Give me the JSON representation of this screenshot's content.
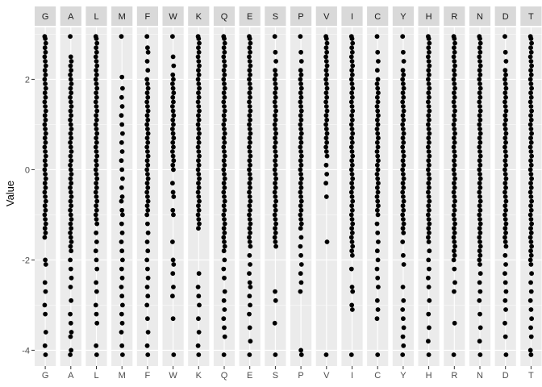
{
  "chart_data": {
    "type": "scatter",
    "facets": [
      "G",
      "A",
      "L",
      "M",
      "F",
      "W",
      "K",
      "Q",
      "E",
      "S",
      "P",
      "V",
      "I",
      "C",
      "Y",
      "H",
      "R",
      "N",
      "D",
      "T"
    ],
    "ylabel": "Value",
    "xlabel": "",
    "ylim": [
      -4.35,
      3.15
    ],
    "y_ticks": [
      -4,
      -2,
      0,
      2
    ],
    "y_tick_labels": [
      "-4",
      "-2",
      "0",
      "2"
    ],
    "grid": true,
    "legend": "none",
    "point_color": "#000000",
    "panel_background": "#ebebeb",
    "strip_background": "#d9d9d9",
    "series": [
      {
        "category": "G",
        "values": [
          2.95,
          2.9,
          2.8,
          2.7,
          2.6,
          2.5,
          2.4,
          2.3,
          2.2,
          2.1,
          2.0,
          1.9,
          1.8,
          1.7,
          1.6,
          1.5,
          1.4,
          1.3,
          1.2,
          1.1,
          1.0,
          0.9,
          0.8,
          0.7,
          0.6,
          0.5,
          0.4,
          0.3,
          0.2,
          0.1,
          0.0,
          -0.1,
          -0.2,
          -0.3,
          -0.4,
          -0.5,
          -0.6,
          -0.7,
          -0.8,
          -0.9,
          -1.0,
          -1.1,
          -1.2,
          -1.3,
          -1.4,
          -1.5,
          -2.0,
          -2.1,
          -2.5,
          -2.7,
          -3.0,
          -3.2,
          -3.6,
          -3.9,
          -4.1
        ]
      },
      {
        "category": "A",
        "values": [
          2.95,
          2.5,
          2.4,
          2.3,
          2.2,
          2.1,
          2.0,
          1.9,
          1.8,
          1.7,
          1.6,
          1.5,
          1.4,
          1.3,
          1.2,
          1.1,
          1.0,
          0.9,
          0.8,
          0.7,
          0.6,
          0.5,
          0.4,
          0.3,
          0.2,
          0.1,
          0.0,
          -0.1,
          -0.2,
          -0.3,
          -0.4,
          -0.5,
          -0.6,
          -0.7,
          -0.8,
          -0.9,
          -1.0,
          -1.1,
          -1.2,
          -1.3,
          -1.4,
          -1.5,
          -1.6,
          -1.7,
          -1.8,
          -2.0,
          -2.2,
          -2.4,
          -2.6,
          -2.9,
          -3.2,
          -3.4,
          -3.6,
          -3.7,
          -4.0,
          -4.1
        ]
      },
      {
        "category": "L",
        "values": [
          2.95,
          2.9,
          2.8,
          2.7,
          2.6,
          2.5,
          2.4,
          2.3,
          2.2,
          2.1,
          2.0,
          1.9,
          1.8,
          1.7,
          1.6,
          1.5,
          1.4,
          1.3,
          1.2,
          1.1,
          1.0,
          0.9,
          0.8,
          0.7,
          0.6,
          0.5,
          0.4,
          0.3,
          0.2,
          0.1,
          0.0,
          -0.1,
          -0.2,
          -0.3,
          -0.4,
          -0.5,
          -0.6,
          -0.7,
          -0.8,
          -0.9,
          -1.0,
          -1.1,
          -1.2,
          -1.4,
          -1.6,
          -1.8,
          -2.0,
          -2.2,
          -2.5,
          -2.7,
          -3.0,
          -3.2,
          -3.4,
          -3.9,
          -4.1
        ]
      },
      {
        "category": "M",
        "values": [
          2.95,
          2.05,
          1.8,
          1.6,
          1.4,
          1.2,
          1.0,
          0.8,
          0.6,
          0.4,
          0.2,
          0.0,
          -0.2,
          -0.4,
          -0.6,
          -0.7,
          -0.9,
          -1.0,
          -1.2,
          -1.4,
          -1.6,
          -1.8,
          -2.0,
          -2.2,
          -2.4,
          -2.6,
          -2.8,
          -3.0,
          -3.2,
          -3.4,
          -3.6,
          -3.9,
          -4.1
        ]
      },
      {
        "category": "F",
        "values": [
          2.95,
          2.7,
          2.6,
          2.4,
          2.2,
          2.0,
          1.9,
          1.8,
          1.7,
          1.6,
          1.5,
          1.4,
          1.3,
          1.2,
          1.1,
          1.0,
          0.9,
          0.8,
          0.7,
          0.6,
          0.5,
          0.4,
          0.3,
          0.2,
          0.1,
          0.0,
          -0.1,
          -0.2,
          -0.3,
          -0.4,
          -0.5,
          -0.6,
          -0.7,
          -0.8,
          -0.9,
          -1.0,
          -1.2,
          -1.4,
          -1.6,
          -1.8,
          -2.0,
          -2.2,
          -2.4,
          -2.6,
          -2.8,
          -3.0,
          -3.3,
          -3.6,
          -3.9,
          -4.1
        ]
      },
      {
        "category": "W",
        "values": [
          2.95,
          2.5,
          2.3,
          2.1,
          2.0,
          1.9,
          1.8,
          1.7,
          1.6,
          1.5,
          1.4,
          1.3,
          1.2,
          1.1,
          1.0,
          0.9,
          0.8,
          0.7,
          0.6,
          0.5,
          0.4,
          0.3,
          0.2,
          0.1,
          0.0,
          -0.3,
          -0.5,
          -0.6,
          -0.9,
          -1.0,
          -1.6,
          -2.0,
          -2.1,
          -2.3,
          -2.6,
          -2.8,
          -3.3,
          -4.1
        ]
      },
      {
        "category": "K",
        "values": [
          2.95,
          2.9,
          2.8,
          2.7,
          2.6,
          2.5,
          2.4,
          2.3,
          2.2,
          2.1,
          2.0,
          1.9,
          1.8,
          1.7,
          1.6,
          1.5,
          1.4,
          1.3,
          1.2,
          1.1,
          1.0,
          0.9,
          0.8,
          0.7,
          0.6,
          0.5,
          0.4,
          0.3,
          0.2,
          0.1,
          0.0,
          -0.1,
          -0.2,
          -0.3,
          -0.4,
          -0.5,
          -0.6,
          -0.7,
          -0.8,
          -0.9,
          -1.0,
          -1.1,
          -1.2,
          -1.3,
          -2.3,
          -2.6,
          -2.8,
          -3.0,
          -3.3,
          -3.6,
          -3.9,
          -4.1
        ]
      },
      {
        "category": "Q",
        "values": [
          2.95,
          2.9,
          2.8,
          2.7,
          2.6,
          2.5,
          2.4,
          2.3,
          2.2,
          2.1,
          2.0,
          1.9,
          1.8,
          1.7,
          1.6,
          1.5,
          1.4,
          1.3,
          1.2,
          1.1,
          1.0,
          0.9,
          0.8,
          0.7,
          0.6,
          0.5,
          0.4,
          0.3,
          0.2,
          0.1,
          0.0,
          -0.1,
          -0.2,
          -0.3,
          -0.4,
          -0.5,
          -0.6,
          -0.7,
          -0.8,
          -0.9,
          -1.0,
          -1.1,
          -1.2,
          -1.3,
          -1.4,
          -1.5,
          -1.6,
          -1.7,
          -1.8,
          -2.0,
          -2.2,
          -2.4,
          -2.7,
          -2.9,
          -3.1,
          -3.3,
          -3.5,
          -3.7,
          -4.1
        ]
      },
      {
        "category": "E",
        "values": [
          2.95,
          2.9,
          2.8,
          2.7,
          2.6,
          2.5,
          2.4,
          2.3,
          2.2,
          2.1,
          2.0,
          1.9,
          1.8,
          1.7,
          1.6,
          1.5,
          1.4,
          1.3,
          1.2,
          1.1,
          1.0,
          0.9,
          0.8,
          0.7,
          0.6,
          0.5,
          0.4,
          0.3,
          0.2,
          0.1,
          0.0,
          -0.1,
          -0.2,
          -0.3,
          -0.4,
          -0.5,
          -0.6,
          -0.7,
          -0.8,
          -0.9,
          -1.0,
          -1.1,
          -1.2,
          -1.3,
          -1.4,
          -1.5,
          -1.6,
          -1.7,
          -1.9,
          -2.1,
          -2.3,
          -2.5,
          -2.6,
          -2.8,
          -3.0,
          -3.2,
          -3.5,
          -3.8,
          -4.1
        ]
      },
      {
        "category": "S",
        "values": [
          2.95,
          2.6,
          2.4,
          2.2,
          2.1,
          2.0,
          1.9,
          1.8,
          1.7,
          1.6,
          1.5,
          1.4,
          1.3,
          1.2,
          1.1,
          1.0,
          0.9,
          0.8,
          0.7,
          0.6,
          0.5,
          0.4,
          0.3,
          0.2,
          0.1,
          0.0,
          -0.1,
          -0.2,
          -0.3,
          -0.4,
          -0.5,
          -0.6,
          -0.7,
          -0.8,
          -0.9,
          -1.0,
          -1.1,
          -1.2,
          -1.3,
          -1.4,
          -1.5,
          -1.6,
          -1.7,
          -2.7,
          -2.9,
          -3.4,
          -4.1
        ]
      },
      {
        "category": "P",
        "values": [
          2.95,
          2.6,
          2.4,
          2.2,
          2.1,
          2.0,
          1.9,
          1.8,
          1.7,
          1.6,
          1.5,
          1.4,
          1.3,
          1.2,
          1.1,
          1.0,
          0.9,
          0.8,
          0.7,
          0.6,
          0.5,
          0.4,
          0.3,
          0.2,
          0.1,
          0.0,
          -0.1,
          -0.2,
          -0.3,
          -0.4,
          -0.5,
          -0.6,
          -0.7,
          -0.8,
          -0.9,
          -1.0,
          -1.1,
          -1.2,
          -1.3,
          -1.5,
          -1.7,
          -1.9,
          -2.1,
          -2.3,
          -2.5,
          -2.7,
          -4.0,
          -4.1
        ]
      },
      {
        "category": "V",
        "values": [
          2.95,
          2.9,
          2.8,
          2.7,
          2.6,
          2.5,
          2.4,
          2.3,
          2.2,
          2.1,
          2.0,
          1.9,
          1.8,
          1.7,
          1.6,
          1.5,
          1.4,
          1.3,
          1.2,
          1.1,
          1.0,
          0.9,
          0.8,
          0.7,
          0.6,
          0.5,
          0.4,
          0.3,
          0.1,
          -0.1,
          -0.3,
          -0.6,
          -1.6,
          -4.1
        ]
      },
      {
        "category": "I",
        "values": [
          2.95,
          2.9,
          2.8,
          2.7,
          2.6,
          2.5,
          2.4,
          2.3,
          2.2,
          2.1,
          2.0,
          1.9,
          1.8,
          1.7,
          1.6,
          1.5,
          1.4,
          1.3,
          1.2,
          1.1,
          1.0,
          0.9,
          0.8,
          0.7,
          0.6,
          0.5,
          0.4,
          0.3,
          0.2,
          0.1,
          0.0,
          -0.1,
          -0.2,
          -0.3,
          -0.4,
          -0.5,
          -0.6,
          -0.7,
          -0.8,
          -0.9,
          -1.0,
          -1.1,
          -1.2,
          -1.3,
          -1.4,
          -1.5,
          -1.6,
          -1.7,
          -1.8,
          -1.9,
          -2.2,
          -2.6,
          -2.7,
          -3.0,
          -3.1,
          -4.1
        ]
      },
      {
        "category": "C",
        "values": [
          2.95,
          2.6,
          2.4,
          2.2,
          2.0,
          1.9,
          1.8,
          1.7,
          1.6,
          1.5,
          1.4,
          1.3,
          1.2,
          1.1,
          1.0,
          0.9,
          0.8,
          0.7,
          0.6,
          0.5,
          0.4,
          0.3,
          0.2,
          0.1,
          0.0,
          -0.1,
          -0.2,
          -0.3,
          -0.4,
          -0.5,
          -0.6,
          -0.7,
          -0.8,
          -0.9,
          -1.0,
          -1.2,
          -1.4,
          -1.6,
          -1.8,
          -2.0,
          -2.2,
          -2.4,
          -2.6,
          -2.9,
          -3.1,
          -3.3,
          -4.1
        ]
      },
      {
        "category": "Y",
        "values": [
          2.95,
          2.6,
          2.4,
          2.2,
          2.1,
          2.0,
          1.9,
          1.8,
          1.7,
          1.6,
          1.5,
          1.4,
          1.3,
          1.2,
          1.1,
          1.0,
          0.9,
          0.8,
          0.7,
          0.6,
          0.5,
          0.4,
          0.3,
          0.2,
          0.1,
          0.0,
          -0.1,
          -0.2,
          -0.3,
          -0.4,
          -0.5,
          -0.6,
          -0.7,
          -0.8,
          -0.9,
          -1.0,
          -1.1,
          -1.2,
          -1.3,
          -1.4,
          -1.6,
          -1.9,
          -2.1,
          -2.6,
          -2.9,
          -3.1,
          -3.3,
          -3.5,
          -3.7,
          -3.9,
          -4.1
        ]
      },
      {
        "category": "H",
        "values": [
          2.95,
          2.9,
          2.8,
          2.7,
          2.6,
          2.5,
          2.4,
          2.3,
          2.2,
          2.1,
          2.0,
          1.9,
          1.8,
          1.7,
          1.6,
          1.5,
          1.4,
          1.3,
          1.2,
          1.1,
          1.0,
          0.9,
          0.8,
          0.7,
          0.6,
          0.5,
          0.4,
          0.3,
          0.2,
          0.1,
          0.0,
          -0.1,
          -0.2,
          -0.3,
          -0.4,
          -0.5,
          -0.6,
          -0.7,
          -0.8,
          -0.9,
          -1.0,
          -1.1,
          -1.2,
          -1.3,
          -1.4,
          -1.5,
          -1.6,
          -1.8,
          -2.0,
          -2.2,
          -2.4,
          -2.6,
          -2.9,
          -3.2,
          -3.5,
          -3.8,
          -4.1
        ]
      },
      {
        "category": "R",
        "values": [
          2.95,
          2.9,
          2.8,
          2.7,
          2.6,
          2.5,
          2.4,
          2.3,
          2.2,
          2.1,
          2.0,
          1.9,
          1.8,
          1.7,
          1.6,
          1.5,
          1.4,
          1.3,
          1.2,
          1.1,
          1.0,
          0.9,
          0.8,
          0.7,
          0.6,
          0.5,
          0.4,
          0.3,
          0.2,
          0.1,
          0.0,
          -0.1,
          -0.2,
          -0.3,
          -0.4,
          -0.5,
          -0.6,
          -0.7,
          -0.8,
          -0.9,
          -1.0,
          -1.1,
          -1.2,
          -1.3,
          -1.4,
          -1.5,
          -1.6,
          -1.7,
          -1.8,
          -1.9,
          -2.0,
          -2.2,
          -2.5,
          -2.7,
          -3.4,
          -4.1
        ]
      },
      {
        "category": "N",
        "values": [
          2.95,
          2.9,
          2.8,
          2.7,
          2.6,
          2.5,
          2.4,
          2.3,
          2.2,
          2.1,
          2.0,
          1.9,
          1.8,
          1.7,
          1.6,
          1.5,
          1.4,
          1.3,
          1.2,
          1.1,
          1.0,
          0.9,
          0.8,
          0.7,
          0.6,
          0.5,
          0.4,
          0.3,
          0.2,
          0.1,
          0.0,
          -0.1,
          -0.2,
          -0.3,
          -0.4,
          -0.5,
          -0.6,
          -0.7,
          -0.8,
          -0.9,
          -1.0,
          -1.1,
          -1.2,
          -1.3,
          -1.4,
          -1.5,
          -1.6,
          -1.7,
          -1.8,
          -1.9,
          -2.0,
          -2.1,
          -2.3,
          -2.5,
          -2.7,
          -2.9,
          -3.2,
          -3.5,
          -3.8,
          -4.1
        ]
      },
      {
        "category": "D",
        "values": [
          2.95,
          2.6,
          2.4,
          2.2,
          2.1,
          2.0,
          1.9,
          1.8,
          1.7,
          1.6,
          1.5,
          1.4,
          1.3,
          1.2,
          1.1,
          1.0,
          0.9,
          0.8,
          0.7,
          0.6,
          0.5,
          0.4,
          0.3,
          0.2,
          0.1,
          0.0,
          -0.1,
          -0.2,
          -0.3,
          -0.4,
          -0.5,
          -0.6,
          -0.7,
          -0.8,
          -0.9,
          -1.0,
          -1.1,
          -1.2,
          -1.3,
          -1.4,
          -1.5,
          -1.6,
          -1.7,
          -1.9,
          -2.1,
          -2.3,
          -2.5,
          -2.7,
          -2.9,
          -3.1,
          -3.4,
          -3.7,
          -4.1
        ]
      },
      {
        "category": "T",
        "values": [
          2.95,
          2.9,
          2.8,
          2.7,
          2.6,
          2.5,
          2.4,
          2.3,
          2.2,
          2.1,
          2.0,
          1.9,
          1.8,
          1.7,
          1.6,
          1.5,
          1.4,
          1.3,
          1.2,
          1.1,
          1.0,
          0.9,
          0.8,
          0.7,
          0.6,
          0.5,
          0.4,
          0.3,
          0.2,
          0.1,
          0.0,
          -0.1,
          -0.2,
          -0.3,
          -0.4,
          -0.5,
          -0.6,
          -0.7,
          -0.8,
          -0.9,
          -1.0,
          -1.1,
          -1.2,
          -1.3,
          -1.4,
          -1.5,
          -1.6,
          -1.7,
          -1.8,
          -1.9,
          -2.0,
          -2.1,
          -2.3,
          -2.5,
          -2.7,
          -2.9,
          -3.1,
          -3.3,
          -3.5,
          -3.7,
          -4.0,
          -4.1
        ]
      }
    ]
  }
}
